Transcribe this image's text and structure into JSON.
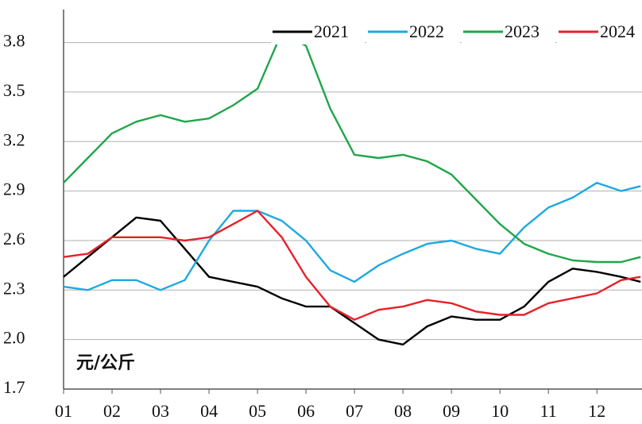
{
  "chart_data": {
    "type": "line",
    "x": [
      1,
      1.5,
      2,
      2.5,
      3,
      3.5,
      4,
      4.5,
      5,
      5.5,
      6,
      6.5,
      7,
      7.5,
      8,
      8.5,
      9,
      9.5,
      10,
      10.5,
      11,
      11.5,
      12,
      12.5,
      12.9
    ],
    "series": [
      {
        "name": "2021",
        "color": "#000000",
        "values": [
          2.38,
          2.5,
          2.62,
          2.74,
          2.72,
          2.55,
          2.38,
          2.35,
          2.32,
          2.25,
          2.2,
          2.2,
          2.1,
          2.0,
          1.97,
          2.08,
          2.14,
          2.12,
          2.12,
          2.2,
          2.35,
          2.43,
          2.41,
          2.38,
          2.35
        ]
      },
      {
        "name": "2022",
        "color": "#1fa8e0",
        "values": [
          2.32,
          2.3,
          2.36,
          2.36,
          2.3,
          2.36,
          2.6,
          2.78,
          2.78,
          2.72,
          2.6,
          2.42,
          2.35,
          2.45,
          2.52,
          2.58,
          2.6,
          2.55,
          2.52,
          2.68,
          2.8,
          2.86,
          2.95,
          2.9,
          2.93
        ]
      },
      {
        "name": "2023",
        "color": "#1fa64a",
        "values": [
          2.95,
          3.1,
          3.25,
          3.32,
          3.36,
          3.32,
          3.34,
          3.42,
          3.52,
          3.86,
          3.78,
          3.4,
          3.12,
          3.1,
          3.12,
          3.08,
          3.0,
          2.85,
          2.7,
          2.58,
          2.52,
          2.48,
          2.47,
          2.47,
          2.5
        ]
      },
      {
        "name": "2024",
        "color": "#e8202a",
        "values": [
          2.5,
          2.52,
          2.62,
          2.62,
          2.62,
          2.6,
          2.62,
          2.7,
          2.78,
          2.62,
          2.38,
          2.2,
          2.12,
          2.18,
          2.2,
          2.24,
          2.22,
          2.17,
          2.15,
          2.15,
          2.22,
          2.25,
          2.28,
          2.36,
          2.38
        ]
      }
    ],
    "y_label": "元/公斤",
    "xlim": [
      1,
      12.93
    ],
    "xticks": [
      {
        "value": 1,
        "label": "01"
      },
      {
        "value": 2,
        "label": "02"
      },
      {
        "value": 3,
        "label": "03"
      },
      {
        "value": 4,
        "label": "04"
      },
      {
        "value": 5,
        "label": "05"
      },
      {
        "value": 6,
        "label": "06"
      },
      {
        "value": 7,
        "label": "07"
      },
      {
        "value": 8,
        "label": "08"
      },
      {
        "value": 9,
        "label": "09"
      },
      {
        "value": 10,
        "label": "10"
      },
      {
        "value": 11,
        "label": "11"
      },
      {
        "value": 12,
        "label": "12"
      }
    ],
    "ylim": [
      1.7,
      4.0
    ],
    "yticks": [
      {
        "value": 1.7,
        "label": "1.7"
      },
      {
        "value": 2.0,
        "label": "2.0"
      },
      {
        "value": 2.3,
        "label": "2.3"
      },
      {
        "value": 2.6,
        "label": "2.6"
      },
      {
        "value": 2.9,
        "label": "2.9"
      },
      {
        "value": 3.2,
        "label": "3.2"
      },
      {
        "value": 3.5,
        "label": "3.5"
      },
      {
        "value": 3.8,
        "label": "3.8"
      }
    ],
    "grid": true
  }
}
